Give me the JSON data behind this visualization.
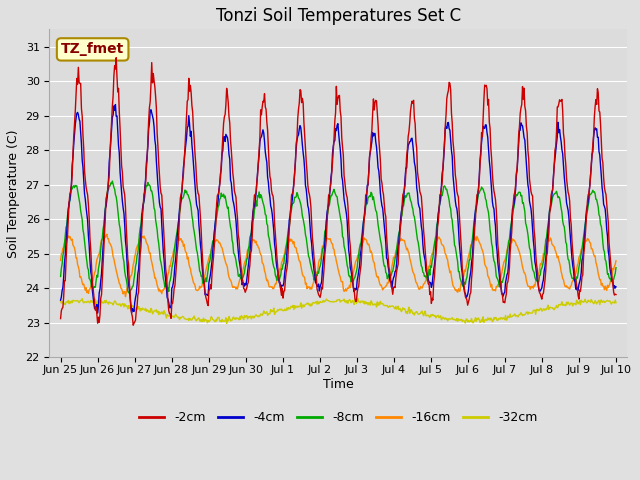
{
  "title": "Tonzi Soil Temperatures Set C",
  "xlabel": "Time",
  "ylabel": "Soil Temperature (C)",
  "ylim": [
    22.0,
    31.5
  ],
  "yticks": [
    22.0,
    23.0,
    24.0,
    25.0,
    26.0,
    27.0,
    28.0,
    29.0,
    30.0,
    31.0
  ],
  "fig_bg_color": "#e0e0e0",
  "plot_bg_color": "#dcdcdc",
  "series_colors": {
    "-2cm": "#cc0000",
    "-4cm": "#0000cc",
    "-8cm": "#00aa00",
    "-16cm": "#ff8800",
    "-32cm": "#cccc00"
  },
  "annotation_text": "TZ_fmet",
  "annotation_bg": "#ffffcc",
  "annotation_border": "#aa8800",
  "annotation_text_color": "#880000",
  "title_fontsize": 12,
  "label_fontsize": 9,
  "tick_fontsize": 8,
  "legend_fontsize": 9,
  "grid_color": "#ffffff",
  "linewidth": 1.0,
  "tick_labels": [
    "Jun 25",
    "Jun 26",
    "Jun 27",
    "Jun 28",
    "Jun 29",
    "Jun 30",
    "Jul 1",
    "Jul 2",
    "Jul 3",
    "Jul 4",
    "Jul 5",
    "Jul 6",
    "Jul 7",
    "Jul 8",
    "Jul 9",
    "Jul 10"
  ],
  "day_amplitudes_2cm": [
    3.5,
    3.8,
    3.6,
    3.2,
    2.8,
    2.8,
    2.9,
    3.0,
    2.8,
    2.7,
    3.1,
    3.2,
    3.0,
    2.9,
    2.9
  ],
  "day_amplitudes_4cm": [
    2.8,
    3.0,
    2.8,
    2.5,
    2.2,
    2.2,
    2.3,
    2.4,
    2.2,
    2.1,
    2.5,
    2.5,
    2.4,
    2.3,
    2.3
  ],
  "day_amplitudes_8cm": [
    1.5,
    1.6,
    1.5,
    1.3,
    1.2,
    1.2,
    1.2,
    1.3,
    1.2,
    1.2,
    1.4,
    1.4,
    1.3,
    1.3,
    1.3
  ],
  "day_amplitudes_16cm": [
    0.8,
    0.85,
    0.8,
    0.75,
    0.7,
    0.7,
    0.7,
    0.75,
    0.7,
    0.7,
    0.75,
    0.75,
    0.7,
    0.7,
    0.7
  ],
  "base_2cm": 26.7,
  "base_4cm": 26.3,
  "base_8cm": 25.5,
  "base_16cm": 24.7,
  "base_32cm": 23.35,
  "phase_2cm": -1.5,
  "phase_4cm": -1.3,
  "phase_8cm": -0.8,
  "phase_16cm": 0.2,
  "n_per_day": 48
}
